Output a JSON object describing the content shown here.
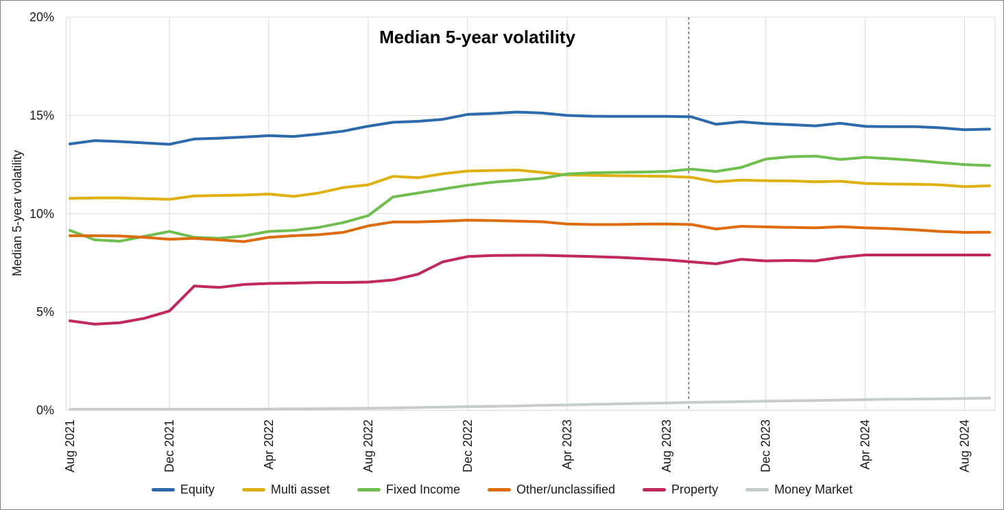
{
  "chart_data": {
    "type": "line",
    "title": "Median 5-year volatility",
    "ylabel": "Median 5-year volatility",
    "ylim": [
      0,
      20
    ],
    "grid": true,
    "legend_position": "bottom",
    "y_tick_labels": [
      "0%",
      "5%",
      "10%",
      "15%",
      "20%"
    ],
    "x_tick_every": 4,
    "x_tick_labels": [
      "Aug 2021",
      "Dec 2021",
      "Apr 2022",
      "Aug 2022",
      "Dec 2022",
      "Apr 2023",
      "Aug 2023",
      "Dec 2023",
      "Apr 2024",
      "Aug 2024"
    ],
    "categories": [
      "Aug 2021",
      "Sep 2021",
      "Oct 2021",
      "Nov 2021",
      "Dec 2021",
      "Jan 2022",
      "Feb 2022",
      "Mar 2022",
      "Apr 2022",
      "May 2022",
      "Jun 2022",
      "Jul 2022",
      "Aug 2022",
      "Sep 2022",
      "Oct 2022",
      "Nov 2022",
      "Dec 2022",
      "Jan 2023",
      "Feb 2023",
      "Mar 2023",
      "Apr 2023",
      "May 2023",
      "Jun 2023",
      "Jul 2023",
      "Aug 2023",
      "Sep 2023",
      "Oct 2023",
      "Nov 2023",
      "Dec 2023",
      "Jan 2024",
      "Feb 2024",
      "Mar 2024",
      "Apr 2024",
      "May 2024",
      "Jun 2024",
      "Jul 2024",
      "Aug 2024",
      "Sep 2024"
    ],
    "series": [
      {
        "name": "Equity",
        "color": "#2c6aad",
        "values": [
          13.55,
          13.72,
          13.67,
          13.6,
          13.53,
          13.8,
          13.84,
          13.9,
          13.97,
          13.93,
          14.05,
          14.2,
          14.45,
          14.65,
          14.7,
          14.8,
          15.05,
          15.1,
          15.17,
          15.12,
          15.0,
          14.96,
          14.95,
          14.95,
          14.95,
          14.93,
          14.55,
          14.68,
          14.58,
          14.53,
          14.47,
          14.6,
          14.44,
          14.43,
          14.43,
          14.37,
          14.27,
          14.3
        ]
      },
      {
        "name": "Multi asset",
        "color": "#e0b010",
        "values": [
          10.78,
          10.8,
          10.8,
          10.77,
          10.73,
          10.9,
          10.93,
          10.95,
          11.0,
          10.88,
          11.05,
          11.33,
          11.47,
          11.9,
          11.83,
          12.03,
          12.17,
          12.2,
          12.22,
          12.1,
          11.97,
          11.95,
          11.93,
          11.92,
          11.9,
          11.85,
          11.62,
          11.71,
          11.68,
          11.67,
          11.62,
          11.65,
          11.54,
          11.51,
          11.5,
          11.47,
          11.38,
          11.42
        ]
      },
      {
        "name": "Fixed Income",
        "color": "#6fbe4f",
        "values": [
          9.15,
          8.67,
          8.6,
          8.85,
          9.1,
          8.8,
          8.75,
          8.87,
          9.1,
          9.15,
          9.3,
          9.55,
          9.9,
          10.85,
          11.05,
          11.25,
          11.45,
          11.6,
          11.7,
          11.8,
          12.02,
          12.08,
          12.1,
          12.12,
          12.15,
          12.27,
          12.15,
          12.35,
          12.78,
          12.9,
          12.93,
          12.76,
          12.87,
          12.8,
          12.71,
          12.6,
          12.5,
          12.45
        ]
      },
      {
        "name": "Other/unclassified",
        "color": "#dd6c0c",
        "values": [
          8.88,
          8.88,
          8.87,
          8.8,
          8.7,
          8.75,
          8.67,
          8.58,
          8.8,
          8.88,
          8.93,
          9.05,
          9.38,
          9.58,
          9.58,
          9.62,
          9.67,
          9.65,
          9.62,
          9.59,
          9.48,
          9.45,
          9.45,
          9.47,
          9.48,
          9.45,
          9.22,
          9.36,
          9.33,
          9.3,
          9.28,
          9.34,
          9.28,
          9.24,
          9.18,
          9.1,
          9.05,
          9.06
        ]
      },
      {
        "name": "Property",
        "color": "#c2275d",
        "values": [
          4.55,
          4.38,
          4.45,
          4.68,
          5.05,
          6.32,
          6.25,
          6.4,
          6.45,
          6.47,
          6.5,
          6.5,
          6.52,
          6.63,
          6.92,
          7.55,
          7.82,
          7.87,
          7.88,
          7.88,
          7.85,
          7.82,
          7.78,
          7.72,
          7.65,
          7.55,
          7.45,
          7.68,
          7.6,
          7.62,
          7.6,
          7.78,
          7.9,
          7.9,
          7.9,
          7.9,
          7.9,
          7.9
        ]
      },
      {
        "name": "Money Market",
        "color": "#c6cdc9",
        "values": [
          0.05,
          0.05,
          0.05,
          0.05,
          0.05,
          0.05,
          0.05,
          0.05,
          0.06,
          0.07,
          0.08,
          0.09,
          0.1,
          0.12,
          0.14,
          0.16,
          0.18,
          0.2,
          0.22,
          0.25,
          0.27,
          0.3,
          0.32,
          0.35,
          0.37,
          0.4,
          0.42,
          0.44,
          0.46,
          0.48,
          0.5,
          0.52,
          0.54,
          0.56,
          0.57,
          0.58,
          0.6,
          0.62
        ]
      }
    ],
    "annotation": {
      "type": "vertical-dashed-line",
      "at_category": "Sep 2023",
      "at_month_index": 24.9,
      "color": "#595959"
    }
  }
}
